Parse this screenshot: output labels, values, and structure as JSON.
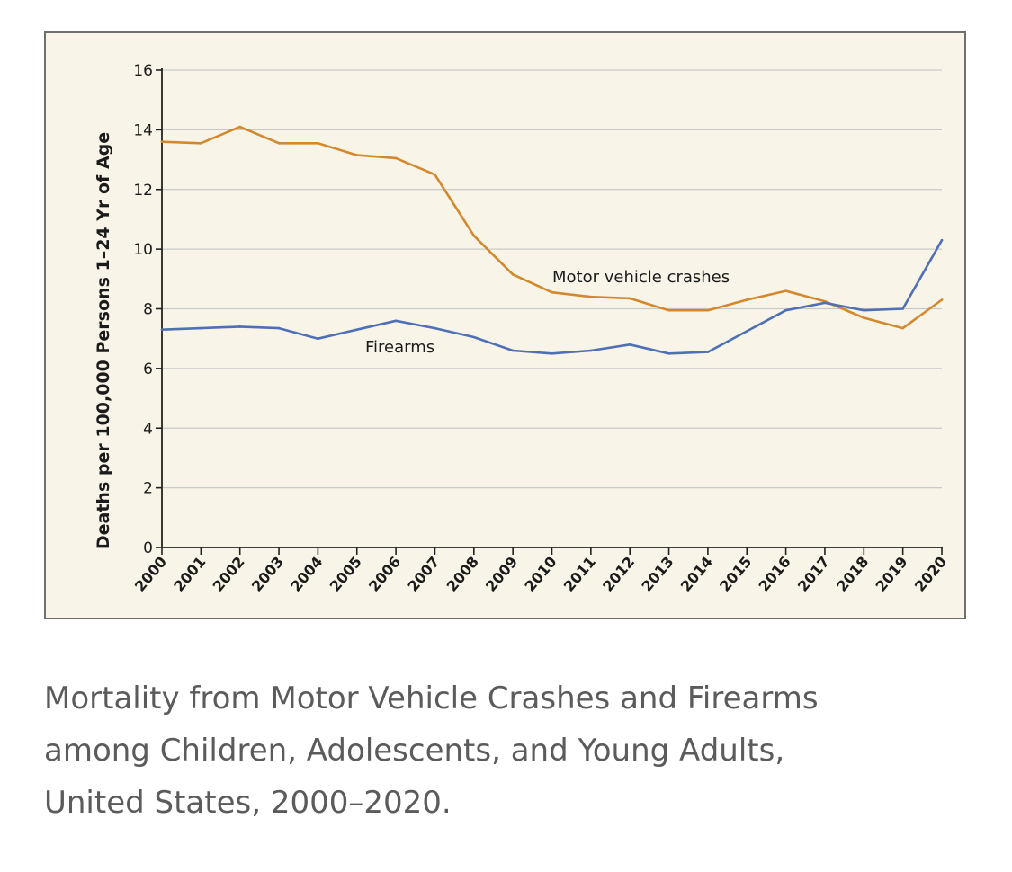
{
  "chart_data": {
    "type": "line",
    "title": "",
    "xlabel": "",
    "ylabel": "Deaths per 100,000 Persons 1–24 Yr of Age",
    "ylim": [
      0,
      16
    ],
    "yticks": [
      "0",
      "2",
      "4",
      "6",
      "8",
      "10",
      "12",
      "14",
      "16"
    ],
    "grid": true,
    "x": [
      "2000",
      "2001",
      "2002",
      "2003",
      "2004",
      "2005",
      "2006",
      "2007",
      "2008",
      "2009",
      "2010",
      "2011",
      "2012",
      "2013",
      "2014",
      "2015",
      "2016",
      "2017",
      "2018",
      "2019",
      "2020"
    ],
    "series": [
      {
        "name": "Motor vehicle crashes",
        "color": "#d4882e",
        "values": [
          13.6,
          13.55,
          14.1,
          13.55,
          13.55,
          13.15,
          13.05,
          12.5,
          10.45,
          9.15,
          8.55,
          8.4,
          8.35,
          7.95,
          7.95,
          8.3,
          8.6,
          8.25,
          7.7,
          7.35,
          8.3
        ]
      },
      {
        "name": "Firearms",
        "color": "#4f6fb6",
        "values": [
          7.3,
          7.35,
          7.4,
          7.35,
          7.0,
          7.3,
          7.6,
          7.35,
          7.05,
          6.6,
          6.5,
          6.6,
          6.8,
          6.5,
          6.55,
          7.25,
          7.95,
          8.2,
          7.95,
          8.0,
          10.3
        ]
      }
    ]
  },
  "caption": {
    "line1": "Mortality from Motor Vehicle Crashes and Firearms",
    "line2": "among Children, Adolescents, and Young Adults,",
    "line3": "United States, 2000–2020."
  }
}
